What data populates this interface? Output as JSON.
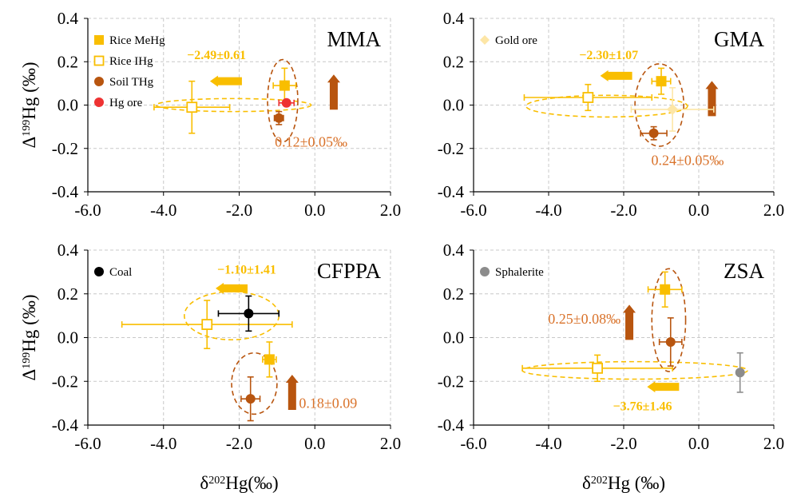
{
  "colors": {
    "rice_mehg": "#f9be00",
    "rice_ihg": "#f9be00",
    "soil_thg": "#b8550f",
    "hg_ore": "#ee3232",
    "gold_ore": "#fde6a6",
    "coal": "#000000",
    "sphalerite": "#8c8c8c",
    "anno_orange": "#d9722a",
    "arrow_yellow": "#f9be00",
    "arrow_brown": "#b8550f",
    "grid": "#c8c8c8"
  },
  "chart_data": [
    {
      "type": "scatter",
      "panel": "MMA",
      "xlim": [
        -6.0,
        2.0
      ],
      "ylim": [
        -0.4,
        0.4
      ],
      "xticks": [
        "-6.0",
        "-4.0",
        "-2.0",
        "0.0",
        "2.0"
      ],
      "yticks": [
        "0.4",
        "0.2",
        "0.0",
        "-0.2",
        "-0.4"
      ],
      "ylabel": "Δ199Hg (‰)",
      "xlabel": "",
      "grid": true,
      "legend_position": "top-left",
      "legend": [
        {
          "name": "Rice MeHg",
          "marker": "square-filled",
          "color": "#f9be00"
        },
        {
          "name": "Rice IHg",
          "marker": "square-open",
          "color": "#f9be00"
        },
        {
          "name": "Soil THg",
          "marker": "circle",
          "color": "#b8550f"
        },
        {
          "name": "Hg ore",
          "marker": "circle",
          "color": "#ee3232"
        }
      ],
      "series": [
        {
          "name": "Rice MeHg",
          "marker": "square-filled",
          "color": "#f9be00",
          "points": [
            {
              "x": -0.8,
              "y": 0.09,
              "xerr": 0.3,
              "yerr": 0.08
            }
          ]
        },
        {
          "name": "Rice IHg",
          "marker": "square-open",
          "color": "#f9be00",
          "points": [
            {
              "x": -3.25,
              "y": -0.01,
              "xerr": 1.0,
              "yerr": 0.12
            }
          ]
        },
        {
          "name": "Soil THg",
          "marker": "circle",
          "color": "#b8550f",
          "points": [
            {
              "x": -0.95,
              "y": -0.06,
              "xerr": 0.12,
              "yerr": 0.03
            }
          ]
        },
        {
          "name": "Hg ore",
          "marker": "circle",
          "color": "#ee3232",
          "points": [
            {
              "x": -0.75,
              "y": 0.01,
              "xerr": 0.2,
              "yerr": 0.0
            }
          ]
        }
      ],
      "ellipses": [
        {
          "cx": -2.15,
          "cy": 0.0,
          "rx": 2.05,
          "ry": 0.03,
          "color": "#f9be00"
        },
        {
          "cx": -0.85,
          "cy": 0.02,
          "rx": 0.4,
          "ry": 0.19,
          "color": "#b8550f"
        }
      ],
      "arrows": [
        {
          "x": -2.35,
          "y": 0.11,
          "direction": "left",
          "color": "#f9be00"
        },
        {
          "x": 0.5,
          "y": 0.06,
          "direction": "up",
          "color": "#b8550f"
        }
      ],
      "annotations": [
        {
          "text": "−2.49±0.61",
          "x": -2.6,
          "y": 0.235,
          "color": "#f9be00",
          "bold": true
        },
        {
          "text": "0.12±0.05‰",
          "x": -0.1,
          "y": -0.17,
          "color": "#d9722a",
          "bold": false
        }
      ]
    },
    {
      "type": "scatter",
      "panel": "GMA",
      "xlim": [
        -6.0,
        2.0
      ],
      "ylim": [
        -0.4,
        0.4
      ],
      "xticks": [
        "-6.0",
        "-4.0",
        "-2.0",
        "0.0",
        "2.0"
      ],
      "yticks": [
        "0.4",
        "0.2",
        "0.0",
        "-0.2",
        "-0.4"
      ],
      "ylabel": "",
      "xlabel": "",
      "grid": true,
      "legend_position": "top-left",
      "legend": [
        {
          "name": "Gold ore",
          "marker": "diamond",
          "color": "#fde6a6"
        }
      ],
      "series": [
        {
          "name": "Rice MeHg",
          "marker": "square-filled",
          "color": "#f9be00",
          "points": [
            {
              "x": -1.0,
              "y": 0.11,
              "xerr": 0.25,
              "yerr": 0.06
            }
          ]
        },
        {
          "name": "Rice IHg",
          "marker": "square-open",
          "color": "#f9be00",
          "points": [
            {
              "x": -2.95,
              "y": 0.035,
              "xerr": 1.7,
              "yerr": 0.06
            }
          ]
        },
        {
          "name": "Soil THg",
          "marker": "circle",
          "color": "#b8550f",
          "points": [
            {
              "x": -1.2,
              "y": -0.13,
              "xerr": 0.35,
              "yerr": 0.03
            }
          ]
        },
        {
          "name": "Gold ore",
          "marker": "diamond",
          "color": "#fde6a6",
          "points": [
            {
              "x": -0.7,
              "y": -0.02,
              "xerr": 1.1,
              "yerr": 0.1
            }
          ]
        }
      ],
      "ellipses": [
        {
          "cx": -2.45,
          "cy": -0.005,
          "rx": 2.15,
          "ry": 0.05,
          "color": "#f9be00"
        },
        {
          "cx": -1.05,
          "cy": 0.0,
          "rx": 0.65,
          "ry": 0.19,
          "color": "#b8550f"
        }
      ],
      "arrows": [
        {
          "x": -2.2,
          "y": 0.135,
          "direction": "left",
          "color": "#f9be00"
        },
        {
          "x": 0.35,
          "y": 0.03,
          "direction": "up",
          "color": "#b8550f"
        }
      ],
      "annotations": [
        {
          "text": "−2.30±1.07",
          "x": -2.4,
          "y": 0.235,
          "color": "#f9be00",
          "bold": true
        },
        {
          "text": "0.24±0.05‰",
          "x": -0.3,
          "y": -0.255,
          "color": "#d9722a",
          "bold": false
        }
      ]
    },
    {
      "type": "scatter",
      "panel": "CFPPA",
      "xlim": [
        -6.0,
        2.0
      ],
      "ylim": [
        -0.4,
        0.4
      ],
      "xticks": [
        "-6.0",
        "-4.0",
        "-2.0",
        "0.0",
        "2.0"
      ],
      "yticks": [
        "0.4",
        "0.2",
        "0.0",
        "-0.2",
        "-0.4"
      ],
      "ylabel": "Δ199Hg (‰)",
      "xlabel": "δ202Hg(‰)",
      "grid": true,
      "legend_position": "top-left",
      "legend": [
        {
          "name": "Coal",
          "marker": "circle",
          "color": "#000000"
        }
      ],
      "series": [
        {
          "name": "Rice MeHg",
          "marker": "square-filled",
          "color": "#f9be00",
          "points": [
            {
              "x": -1.2,
              "y": -0.1,
              "xerr": 0.18,
              "yerr": 0.08
            }
          ]
        },
        {
          "name": "Rice IHg",
          "marker": "square-open",
          "color": "#f9be00",
          "points": [
            {
              "x": -2.85,
              "y": 0.06,
              "xerr": 2.25,
              "yerr": 0.11
            }
          ]
        },
        {
          "name": "Soil THg",
          "marker": "circle",
          "color": "#b8550f",
          "points": [
            {
              "x": -1.7,
              "y": -0.28,
              "xerr": 0.25,
              "yerr": 0.1
            }
          ]
        },
        {
          "name": "Coal",
          "marker": "circle",
          "color": "#000000",
          "points": [
            {
              "x": -1.75,
              "y": 0.11,
              "xerr": 0.8,
              "yerr": 0.08
            }
          ]
        }
      ],
      "ellipses": [
        {
          "cx": -2.2,
          "cy": 0.1,
          "rx": 1.25,
          "ry": 0.11,
          "color": "#f9be00"
        },
        {
          "cx": -1.6,
          "cy": -0.21,
          "rx": 0.6,
          "ry": 0.14,
          "color": "#b8550f"
        }
      ],
      "arrows": [
        {
          "x": -2.2,
          "y": 0.225,
          "direction": "left",
          "color": "#f9be00"
        },
        {
          "x": -0.6,
          "y": -0.25,
          "direction": "up",
          "color": "#b8550f"
        }
      ],
      "annotations": [
        {
          "text": "−1.10±1.41",
          "x": -1.8,
          "y": 0.315,
          "color": "#f9be00",
          "bold": true
        },
        {
          "text": "0.18±0.09",
          "x": 0.35,
          "y": -0.3,
          "color": "#d9722a",
          "bold": false
        }
      ]
    },
    {
      "type": "scatter",
      "panel": "ZSA",
      "xlim": [
        -6.0,
        2.0
      ],
      "ylim": [
        -0.4,
        0.4
      ],
      "xticks": [
        "-6.0",
        "-4.0",
        "-2.0",
        "0.0",
        "2.0"
      ],
      "yticks": [
        "0.4",
        "0.2",
        "0.0",
        "-0.2",
        "-0.4"
      ],
      "ylabel": "",
      "xlabel": "δ202Hg (‰)",
      "grid": true,
      "legend_position": "top-left",
      "legend": [
        {
          "name": "Sphalerite",
          "marker": "circle",
          "color": "#8c8c8c"
        }
      ],
      "series": [
        {
          "name": "Rice MeHg",
          "marker": "square-filled",
          "color": "#f9be00",
          "points": [
            {
              "x": -0.9,
              "y": 0.22,
              "xerr": 0.45,
              "yerr": 0.08
            }
          ]
        },
        {
          "name": "Rice IHg",
          "marker": "square-open",
          "color": "#f9be00",
          "points": [
            {
              "x": -2.7,
              "y": -0.14,
              "xerr": 2.0,
              "yerr": 0.06
            }
          ]
        },
        {
          "name": "Soil THg",
          "marker": "circle",
          "color": "#b8550f",
          "points": [
            {
              "x": -0.75,
              "y": -0.02,
              "xerr": 0.3,
              "yerr": 0.11
            }
          ]
        },
        {
          "name": "Sphalerite",
          "marker": "circle",
          "color": "#8c8c8c",
          "points": [
            {
              "x": 1.1,
              "y": -0.16,
              "xerr": 0.0,
              "yerr": 0.09
            }
          ]
        }
      ],
      "ellipses": [
        {
          "cx": -1.7,
          "cy": -0.15,
          "rx": 3.0,
          "ry": 0.04,
          "color": "#f9be00"
        },
        {
          "cx": -0.8,
          "cy": 0.08,
          "rx": 0.45,
          "ry": 0.235,
          "color": "#b8550f"
        }
      ],
      "arrows": [
        {
          "x": -0.95,
          "y": -0.225,
          "direction": "left",
          "color": "#f9be00"
        },
        {
          "x": -1.85,
          "y": 0.07,
          "direction": "up",
          "color": "#b8550f"
        }
      ],
      "annotations": [
        {
          "text": "0.25±0.08‰",
          "x": -3.05,
          "y": 0.085,
          "color": "#d9722a",
          "bold": false
        },
        {
          "text": "−3.76±1.46",
          "x": -1.5,
          "y": -0.31,
          "color": "#f9be00",
          "bold": true
        }
      ]
    }
  ]
}
